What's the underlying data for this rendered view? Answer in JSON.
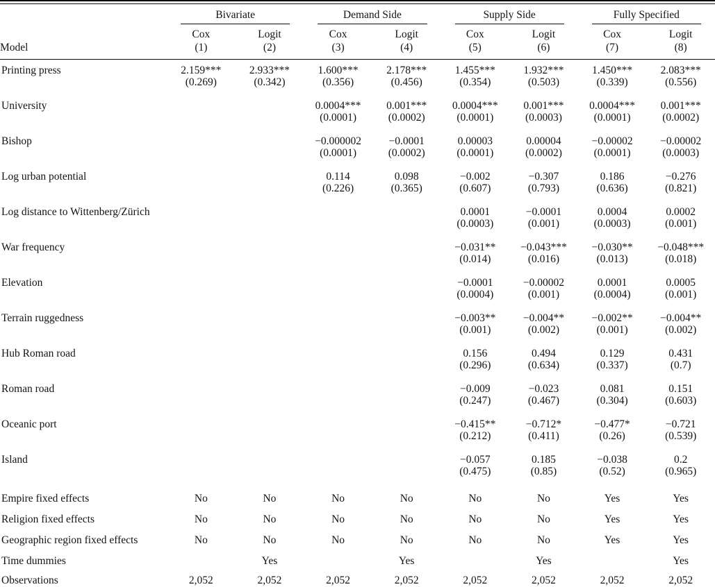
{
  "table": {
    "model_label": "Model",
    "groups": [
      {
        "label": "Bivariate"
      },
      {
        "label": "Demand Side"
      },
      {
        "label": "Supply Side"
      },
      {
        "label": "Fully Specified"
      }
    ],
    "columns": [
      {
        "estimator": "Cox",
        "number": "(1)"
      },
      {
        "estimator": "Logit",
        "number": "(2)"
      },
      {
        "estimator": "Cox",
        "number": "(3)"
      },
      {
        "estimator": "Logit",
        "number": "(4)"
      },
      {
        "estimator": "Cox",
        "number": "(5)"
      },
      {
        "estimator": "Logit",
        "number": "(6)"
      },
      {
        "estimator": "Cox",
        "number": "(7)"
      },
      {
        "estimator": "Logit",
        "number": "(8)"
      }
    ],
    "rows": [
      {
        "label": "Printing press",
        "cells": [
          {
            "coef": "2.159***",
            "se": "(0.269)"
          },
          {
            "coef": "2.933***",
            "se": "(0.342)"
          },
          {
            "coef": "1.600***",
            "se": "(0.356)"
          },
          {
            "coef": "2.178***",
            "se": "(0.456)"
          },
          {
            "coef": "1.455***",
            "se": "(0.354)"
          },
          {
            "coef": "1.932***",
            "se": "(0.503)"
          },
          {
            "coef": "1.450***",
            "se": "(0.339)"
          },
          {
            "coef": "2.083***",
            "se": "(0.556)"
          }
        ]
      },
      {
        "label": "University",
        "cells": [
          null,
          null,
          {
            "coef": "0.0004***",
            "se": "(0.0001)"
          },
          {
            "coef": "0.001***",
            "se": "(0.0002)"
          },
          {
            "coef": "0.0004***",
            "se": "(0.0001)"
          },
          {
            "coef": "0.001***",
            "se": "(0.0003)"
          },
          {
            "coef": "0.0004***",
            "se": "(0.0001)"
          },
          {
            "coef": "0.001***",
            "se": "(0.0002)"
          }
        ]
      },
      {
        "label": "Bishop",
        "cells": [
          null,
          null,
          {
            "coef": "−0.000002",
            "se": "(0.0001)"
          },
          {
            "coef": "−0.0001",
            "se": "(0.0002)"
          },
          {
            "coef": "0.00003",
            "se": "(0.0001)"
          },
          {
            "coef": "0.00004",
            "se": "(0.0002)"
          },
          {
            "coef": "−0.00002",
            "se": "(0.0001)"
          },
          {
            "coef": "−0.00002",
            "se": "(0.0003)"
          }
        ]
      },
      {
        "label": "Log urban potential",
        "cells": [
          null,
          null,
          {
            "coef": "0.114",
            "se": "(0.226)"
          },
          {
            "coef": "0.098",
            "se": "(0.365)"
          },
          {
            "coef": "−0.002",
            "se": "(0.607)"
          },
          {
            "coef": "−0.307",
            "se": "(0.793)"
          },
          {
            "coef": "0.186",
            "se": "(0.636)"
          },
          {
            "coef": "−0.276",
            "se": "(0.821)"
          }
        ]
      },
      {
        "label": "Log distance to Wittenberg/Zürich",
        "cells": [
          null,
          null,
          null,
          null,
          {
            "coef": "0.0001",
            "se": "(0.0003)"
          },
          {
            "coef": "−0.0001",
            "se": "(0.001)"
          },
          {
            "coef": "0.0004",
            "se": "(0.0003)"
          },
          {
            "coef": "0.0002",
            "se": "(0.001)"
          }
        ]
      },
      {
        "label": "War frequency",
        "cells": [
          null,
          null,
          null,
          null,
          {
            "coef": "−0.031**",
            "se": "(0.014)"
          },
          {
            "coef": "−0.043***",
            "se": "(0.016)"
          },
          {
            "coef": "−0.030**",
            "se": "(0.013)"
          },
          {
            "coef": "−0.048***",
            "se": "(0.018)"
          }
        ]
      },
      {
        "label": "Elevation",
        "cells": [
          null,
          null,
          null,
          null,
          {
            "coef": "−0.0001",
            "se": "(0.0004)"
          },
          {
            "coef": "−0.00002",
            "se": "(0.001)"
          },
          {
            "coef": "0.0001",
            "se": "(0.0004)"
          },
          {
            "coef": "0.0005",
            "se": "(0.001)"
          }
        ]
      },
      {
        "label": "Terrain ruggedness",
        "cells": [
          null,
          null,
          null,
          null,
          {
            "coef": "−0.003**",
            "se": "(0.001)"
          },
          {
            "coef": "−0.004**",
            "se": "(0.002)"
          },
          {
            "coef": "−0.002**",
            "se": "(0.001)"
          },
          {
            "coef": "−0.004**",
            "se": "(0.002)"
          }
        ]
      },
      {
        "label": "Hub Roman road",
        "cells": [
          null,
          null,
          null,
          null,
          {
            "coef": "0.156",
            "se": "(0.296)"
          },
          {
            "coef": "0.494",
            "se": "(0.634)"
          },
          {
            "coef": "0.129",
            "se": "(0.337)"
          },
          {
            "coef": "0.431",
            "se": "(0.7)"
          }
        ]
      },
      {
        "label": "Roman road",
        "cells": [
          null,
          null,
          null,
          null,
          {
            "coef": "−0.009",
            "se": "(0.247)"
          },
          {
            "coef": "−0.023",
            "se": "(0.467)"
          },
          {
            "coef": "0.081",
            "se": "(0.304)"
          },
          {
            "coef": "0.151",
            "se": "(0.603)"
          }
        ]
      },
      {
        "label": "Oceanic port",
        "cells": [
          null,
          null,
          null,
          null,
          {
            "coef": "−0.415**",
            "se": "(0.212)"
          },
          {
            "coef": "−0.712*",
            "se": "(0.411)"
          },
          {
            "coef": "−0.477*",
            "se": "(0.26)"
          },
          {
            "coef": "−0.721",
            "se": "(0.539)"
          }
        ]
      },
      {
        "label": "Island",
        "cells": [
          null,
          null,
          null,
          null,
          {
            "coef": "−0.057",
            "se": "(0.475)"
          },
          {
            "coef": "0.185",
            "se": "(0.85)"
          },
          {
            "coef": "−0.038",
            "se": "(0.52)"
          },
          {
            "coef": "0.2",
            "se": "(0.965)"
          }
        ]
      }
    ],
    "bottom_rows": [
      {
        "label": "Empire fixed effects",
        "values": [
          "No",
          "No",
          "No",
          "No",
          "No",
          "No",
          "Yes",
          "Yes"
        ]
      },
      {
        "label": "Religion fixed effects",
        "values": [
          "No",
          "No",
          "No",
          "No",
          "No",
          "No",
          "Yes",
          "Yes"
        ]
      },
      {
        "label": "Geographic region fixed effects",
        "values": [
          "No",
          "No",
          "No",
          "No",
          "No",
          "No",
          "Yes",
          "Yes"
        ]
      },
      {
        "label": "Time dummies",
        "values": [
          "",
          "Yes",
          "",
          "Yes",
          "",
          "Yes",
          "",
          "Yes"
        ]
      },
      {
        "label": "Observations",
        "values": [
          "2,052",
          "2,052",
          "2,052",
          "2,052",
          "2,052",
          "2,052",
          "2,052",
          "2,052"
        ]
      }
    ]
  }
}
